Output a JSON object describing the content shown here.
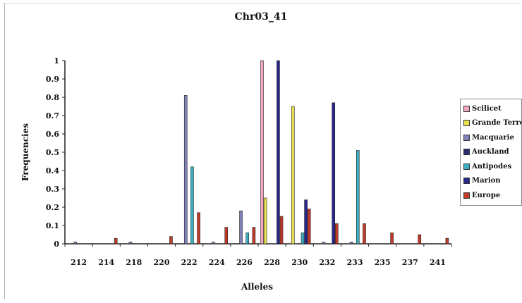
{
  "chart_data": {
    "type": "bar",
    "title": "Chr03_41",
    "xlabel": "Alleles",
    "ylabel": "Frequencies",
    "ylim": [
      0,
      1
    ],
    "yticks": [
      "0",
      "0.1",
      "0.2",
      "0.3",
      "0.4",
      "0.5",
      "0.6",
      "0.7",
      "0.8",
      "0.9",
      "1"
    ],
    "categories": [
      "212",
      "214",
      "218",
      "220",
      "222",
      "224",
      "226",
      "228",
      "230",
      "232",
      "233",
      "235",
      "237",
      "241"
    ],
    "legend_position": "right",
    "grid": false,
    "series": [
      {
        "name": "Scilicet",
        "color": "#f4a6c4",
        "values": [
          0,
          0,
          0,
          0,
          0,
          0,
          0,
          1.0,
          0,
          0,
          0,
          0,
          0,
          0
        ]
      },
      {
        "name": "Grande Terre",
        "color": "#e8e050",
        "values": [
          0,
          0,
          0,
          0,
          0,
          0,
          0,
          0.25,
          0.75,
          0,
          0,
          0,
          0,
          0
        ]
      },
      {
        "name": "Macquarie",
        "color": "#8080b8",
        "values": [
          0.01,
          0,
          0.01,
          0,
          0.81,
          0.01,
          0.18,
          0,
          0,
          0.01,
          0.01,
          0,
          0,
          0
        ]
      },
      {
        "name": "Auckland",
        "color": "#2a2a6e",
        "values": [
          0,
          0,
          0,
          0,
          0,
          0,
          0,
          0,
          0,
          0,
          0,
          0,
          0,
          0
        ]
      },
      {
        "name": "Antipodes",
        "color": "#3aaec0",
        "values": [
          0,
          0,
          0,
          0,
          0.42,
          0,
          0.06,
          0,
          0.06,
          0,
          0.51,
          0,
          0,
          0
        ]
      },
      {
        "name": "Marion",
        "color": "#28288a",
        "values": [
          0,
          0,
          0,
          0,
          0,
          0,
          0,
          1.0,
          0.24,
          0.77,
          0,
          0,
          0,
          0
        ]
      },
      {
        "name": "Europe",
        "color": "#c03a28",
        "values": [
          0,
          0.03,
          0,
          0.04,
          0.17,
          0.09,
          0.09,
          0.15,
          0.19,
          0.11,
          0.11,
          0.06,
          0.05,
          0.03
        ]
      }
    ]
  }
}
